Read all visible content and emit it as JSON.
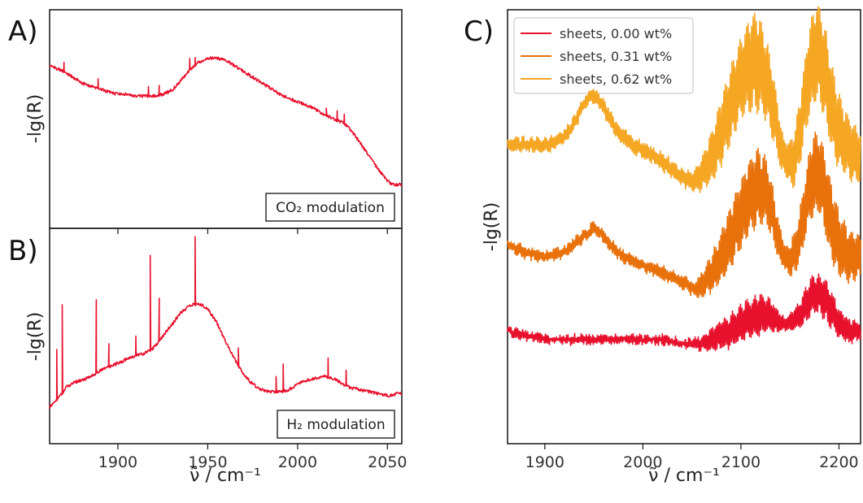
{
  "chart_data": [
    {
      "panel": "A)",
      "type": "line",
      "xlabel": "ν̃ / cm⁻¹",
      "ylabel": "-lg(R)",
      "annotation": "CO₂ modulation",
      "xlim": [
        1862,
        2058
      ],
      "ylim": [
        0,
        1
      ],
      "xticks": [
        1900,
        1950,
        2000,
        2050
      ],
      "show_x_tick_labels": false,
      "color": "#e8112d",
      "series": [
        {
          "x": [
            1862,
            1868,
            1875,
            1880,
            1885,
            1890,
            1895,
            1900,
            1905,
            1910,
            1915,
            1920,
            1925,
            1930,
            1935,
            1940,
            1945,
            1950,
            1955,
            1960,
            1965,
            1970,
            1975,
            1980,
            1985,
            1990,
            1995,
            2000,
            2005,
            2010,
            2015,
            2020,
            2025,
            2028,
            2035,
            2040,
            2045,
            2050,
            2053,
            2058
          ],
          "y": [
            0.78,
            0.76,
            0.72,
            0.69,
            0.67,
            0.66,
            0.64,
            0.63,
            0.63,
            0.62,
            0.62,
            0.62,
            0.63,
            0.65,
            0.7,
            0.76,
            0.8,
            0.82,
            0.82,
            0.81,
            0.78,
            0.75,
            0.72,
            0.69,
            0.66,
            0.63,
            0.61,
            0.59,
            0.57,
            0.55,
            0.52,
            0.5,
            0.48,
            0.46,
            0.37,
            0.3,
            0.23,
            0.17,
            0.15,
            0.15
          ],
          "spikes": [
            [
              1870,
              0.05
            ],
            [
              1889,
              0.05
            ],
            [
              1917,
              0.05
            ],
            [
              1923,
              0.05
            ],
            [
              1940,
              0.06
            ],
            [
              1943,
              0.04
            ],
            [
              2016,
              0.04
            ],
            [
              2022,
              0.05
            ],
            [
              2026,
              0.05
            ]
          ]
        }
      ]
    },
    {
      "panel": "B)",
      "type": "line",
      "xlabel": "ν̃ / cm⁻¹",
      "ylabel": "-lg(R)",
      "annotation": "H₂ modulation",
      "xlim": [
        1862,
        2058
      ],
      "ylim": [
        0,
        1
      ],
      "xticks": [
        1900,
        1950,
        2000,
        2050
      ],
      "show_x_tick_labels": true,
      "color": "#e8112d",
      "series": [
        {
          "x": [
            1862,
            1865,
            1868,
            1872,
            1876,
            1880,
            1885,
            1890,
            1895,
            1900,
            1905,
            1910,
            1915,
            1920,
            1925,
            1930,
            1935,
            1940,
            1945,
            1950,
            1955,
            1960,
            1965,
            1970,
            1975,
            1980,
            1985,
            1990,
            1995,
            2000,
            2005,
            2010,
            2015,
            2020,
            2025,
            2030,
            2035,
            2040,
            2045,
            2050,
            2055,
            2058
          ],
          "y": [
            0.13,
            0.16,
            0.19,
            0.24,
            0.26,
            0.27,
            0.29,
            0.32,
            0.34,
            0.36,
            0.38,
            0.4,
            0.41,
            0.44,
            0.5,
            0.56,
            0.62,
            0.66,
            0.67,
            0.64,
            0.57,
            0.47,
            0.38,
            0.3,
            0.25,
            0.22,
            0.21,
            0.21,
            0.22,
            0.25,
            0.27,
            0.28,
            0.29,
            0.28,
            0.25,
            0.23,
            0.22,
            0.21,
            0.2,
            0.19,
            0.2,
            0.2
          ],
          "spikes": [
            [
              1866,
              0.26
            ],
            [
              1869,
              0.46
            ],
            [
              1888,
              0.38
            ],
            [
              1895,
              0.12
            ],
            [
              1910,
              0.1
            ],
            [
              1918,
              0.49
            ],
            [
              1923,
              0.22
            ],
            [
              1943,
              0.35
            ],
            [
              1967,
              0.09
            ],
            [
              1988,
              0.08
            ],
            [
              1992,
              0.14
            ],
            [
              2017,
              0.1
            ],
            [
              2027,
              0.08
            ]
          ]
        }
      ]
    },
    {
      "panel": "C)",
      "type": "line",
      "xlabel": "ν̃ / cm⁻¹",
      "ylabel": "-lg(R)",
      "xlim": [
        1862,
        2222
      ],
      "ylim": [
        0,
        1
      ],
      "xticks": [
        1900,
        2000,
        2100,
        2200
      ],
      "legend_position": "top-left",
      "series": [
        {
          "name": "sheets, 0.00 wt%",
          "color": "#e8112d",
          "x": [
            1862,
            1880,
            1900,
            1920,
            1940,
            1960,
            1980,
            2000,
            2020,
            2040,
            2055,
            2070,
            2080,
            2090,
            2100,
            2110,
            2120,
            2128,
            2135,
            2140,
            2145,
            2150,
            2155,
            2160,
            2165,
            2170,
            2175,
            2180,
            2185,
            2190,
            2195,
            2200,
            2205,
            2210,
            2215,
            2222
          ],
          "y": [
            0.24,
            0.23,
            0.22,
            0.22,
            0.22,
            0.22,
            0.22,
            0.22,
            0.22,
            0.21,
            0.21,
            0.22,
            0.23,
            0.24,
            0.26,
            0.27,
            0.28,
            0.28,
            0.27,
            0.26,
            0.26,
            0.26,
            0.27,
            0.28,
            0.3,
            0.32,
            0.33,
            0.33,
            0.32,
            0.3,
            0.28,
            0.26,
            0.25,
            0.24,
            0.24,
            0.24
          ],
          "osc": [
            [
              1862,
              0.008
            ],
            [
              2050,
              0.01
            ],
            [
              2065,
              0.02
            ],
            [
              2080,
              0.035
            ],
            [
              2100,
              0.045
            ],
            [
              2120,
              0.05
            ],
            [
              2135,
              0.03
            ],
            [
              2145,
              0.015
            ],
            [
              2155,
              0.025
            ],
            [
              2170,
              0.045
            ],
            [
              2185,
              0.05
            ],
            [
              2200,
              0.035
            ],
            [
              2215,
              0.025
            ],
            [
              2222,
              0.02
            ]
          ]
        },
        {
          "name": "sheets, 0.31 wt%",
          "color": "#e8710b",
          "x": [
            1862,
            1880,
            1900,
            1920,
            1940,
            1950,
            1960,
            1970,
            1980,
            2000,
            2020,
            2040,
            2052,
            2060,
            2070,
            2080,
            2090,
            2100,
            2110,
            2118,
            2125,
            2132,
            2138,
            2145,
            2150,
            2155,
            2160,
            2165,
            2170,
            2175,
            2180,
            2185,
            2190,
            2200,
            2210,
            2222
          ],
          "y": [
            0.45,
            0.43,
            0.42,
            0.43,
            0.47,
            0.49,
            0.47,
            0.44,
            0.42,
            0.4,
            0.38,
            0.36,
            0.34,
            0.35,
            0.38,
            0.42,
            0.47,
            0.52,
            0.57,
            0.59,
            0.58,
            0.53,
            0.46,
            0.42,
            0.41,
            0.43,
            0.47,
            0.53,
            0.59,
            0.62,
            0.62,
            0.58,
            0.52,
            0.45,
            0.42,
            0.42
          ],
          "osc": [
            [
              1862,
              0.012
            ],
            [
              2050,
              0.015
            ],
            [
              2065,
              0.035
            ],
            [
              2080,
              0.06
            ],
            [
              2100,
              0.085
            ],
            [
              2115,
              0.095
            ],
            [
              2130,
              0.07
            ],
            [
              2145,
              0.03
            ],
            [
              2160,
              0.06
            ],
            [
              2175,
              0.1
            ],
            [
              2190,
              0.095
            ],
            [
              2205,
              0.07
            ],
            [
              2222,
              0.05
            ]
          ]
        },
        {
          "name": "sheets, 0.62 wt%",
          "color": "#f5a623",
          "x": [
            1862,
            1875,
            1890,
            1905,
            1920,
            1930,
            1940,
            1948,
            1955,
            1965,
            1975,
            1990,
            2005,
            2020,
            2035,
            2050,
            2060,
            2070,
            2080,
            2090,
            2100,
            2108,
            2115,
            2120,
            2127,
            2135,
            2142,
            2150,
            2155,
            2160,
            2165,
            2170,
            2175,
            2180,
            2185,
            2190,
            2197,
            2205,
            2215,
            2222
          ],
          "y": [
            0.69,
            0.69,
            0.69,
            0.69,
            0.71,
            0.74,
            0.79,
            0.81,
            0.8,
            0.76,
            0.72,
            0.69,
            0.67,
            0.65,
            0.62,
            0.6,
            0.62,
            0.66,
            0.72,
            0.79,
            0.85,
            0.88,
            0.89,
            0.88,
            0.84,
            0.76,
            0.67,
            0.64,
            0.66,
            0.72,
            0.8,
            0.87,
            0.91,
            0.91,
            0.87,
            0.81,
            0.74,
            0.7,
            0.67,
            0.66
          ],
          "osc": [
            [
              1862,
              0.015
            ],
            [
              2050,
              0.02
            ],
            [
              2065,
              0.05
            ],
            [
              2080,
              0.08
            ],
            [
              2100,
              0.1
            ],
            [
              2115,
              0.12
            ],
            [
              2130,
              0.09
            ],
            [
              2145,
              0.04
            ],
            [
              2160,
              0.08
            ],
            [
              2175,
              0.12
            ],
            [
              2190,
              0.11
            ],
            [
              2205,
              0.08
            ],
            [
              2222,
              0.06
            ]
          ]
        }
      ]
    }
  ]
}
